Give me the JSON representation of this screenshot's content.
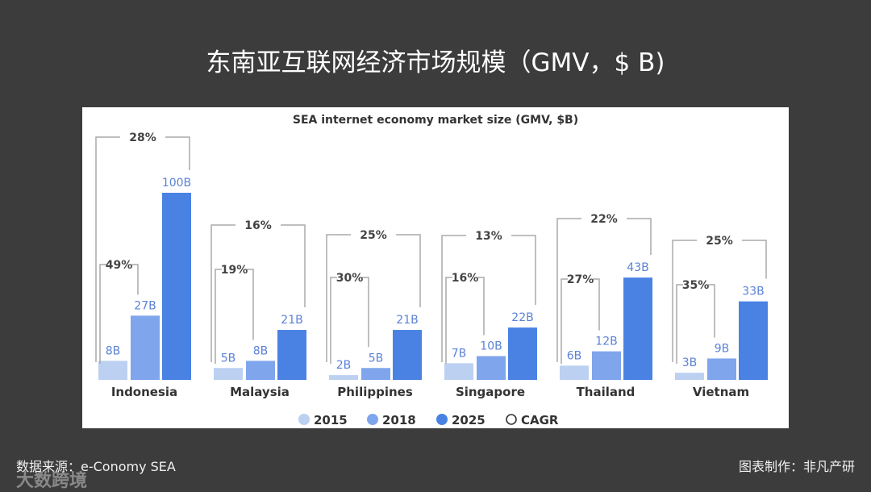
{
  "page": {
    "title": "东南亚互联网经济市场规模（GMV，$ B)",
    "source": "数据来源：e-Conomy SEA",
    "maker": "图表制作：非凡产研",
    "watermark": "大数跨境"
  },
  "chart_data": {
    "type": "bar",
    "title": "SEA internet economy market size (GMV, $B)",
    "categories": [
      "Indonesia",
      "Malaysia",
      "Philippines",
      "Singapore",
      "Thailand",
      "Vietnam"
    ],
    "series": [
      {
        "name": "2015",
        "color": "#bcd0f2",
        "values": [
          8,
          5,
          2,
          7,
          6,
          3
        ],
        "labels": [
          "8B",
          "5B",
          "2B",
          "7B",
          "6B",
          "3B"
        ]
      },
      {
        "name": "2018",
        "color": "#7fa5ec",
        "values": [
          27,
          8,
          5,
          10,
          12,
          9
        ],
        "labels": [
          "27B",
          "8B",
          "5B",
          "10B",
          "12B",
          "9B"
        ]
      },
      {
        "name": "2025",
        "color": "#4a82e4",
        "values": [
          100,
          21,
          21,
          22,
          43,
          33
        ],
        "labels": [
          "100B",
          "21B",
          "21B",
          "22B",
          "43B",
          "33B"
        ]
      }
    ],
    "cagr_2015_2018": [
      "49%",
      "19%",
      "30%",
      "16%",
      "27%",
      "35%"
    ],
    "cagr_2015_2025": [
      "28%",
      "16%",
      "25%",
      "13%",
      "22%",
      "25%"
    ],
    "legend": [
      "2015",
      "2018",
      "2025",
      "CAGR"
    ],
    "legend_position": "bottom",
    "label_color": "#5b82d6",
    "grid": false
  }
}
